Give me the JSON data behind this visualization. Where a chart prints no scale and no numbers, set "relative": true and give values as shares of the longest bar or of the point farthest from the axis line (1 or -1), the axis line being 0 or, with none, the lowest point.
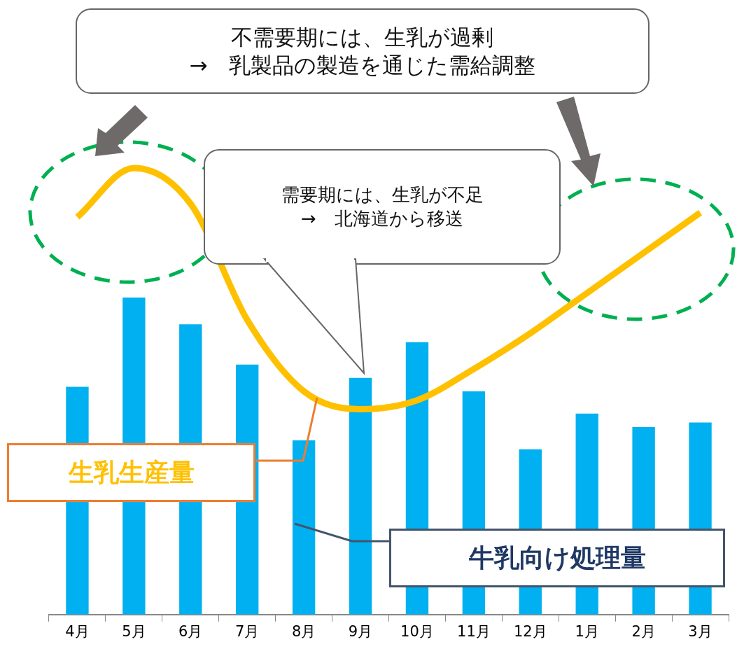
{
  "chart_data": {
    "type": "bar",
    "relative": true,
    "categories": [
      "4月",
      "5月",
      "6月",
      "7月",
      "8月",
      "9月",
      "10月",
      "11月",
      "12月",
      "1月",
      "2月",
      "3月"
    ],
    "series": [
      {
        "name": "牛乳向け処理量",
        "color": "#00b0f0",
        "values": [
          0.51,
          0.71,
          0.65,
          0.56,
          0.39,
          0.53,
          0.61,
          0.5,
          0.37,
          0.45,
          0.42,
          0.43
        ]
      },
      {
        "name": "生乳生産量",
        "type": "line",
        "color": "#ffc000",
        "values": [
          0.89,
          1,
          0.92,
          0.66,
          0.5,
          0.46,
          0.48,
          0.55,
          0.63,
          0.72,
          0.81,
          0.9
        ]
      }
    ],
    "annotations": [
      "不需要期には、生乳が過剰\n→　乳製品の製造を通じた需給調整",
      "需要期には、生乳が不足\n→　北海道から移送"
    ],
    "grid": false,
    "legend": false
  }
}
